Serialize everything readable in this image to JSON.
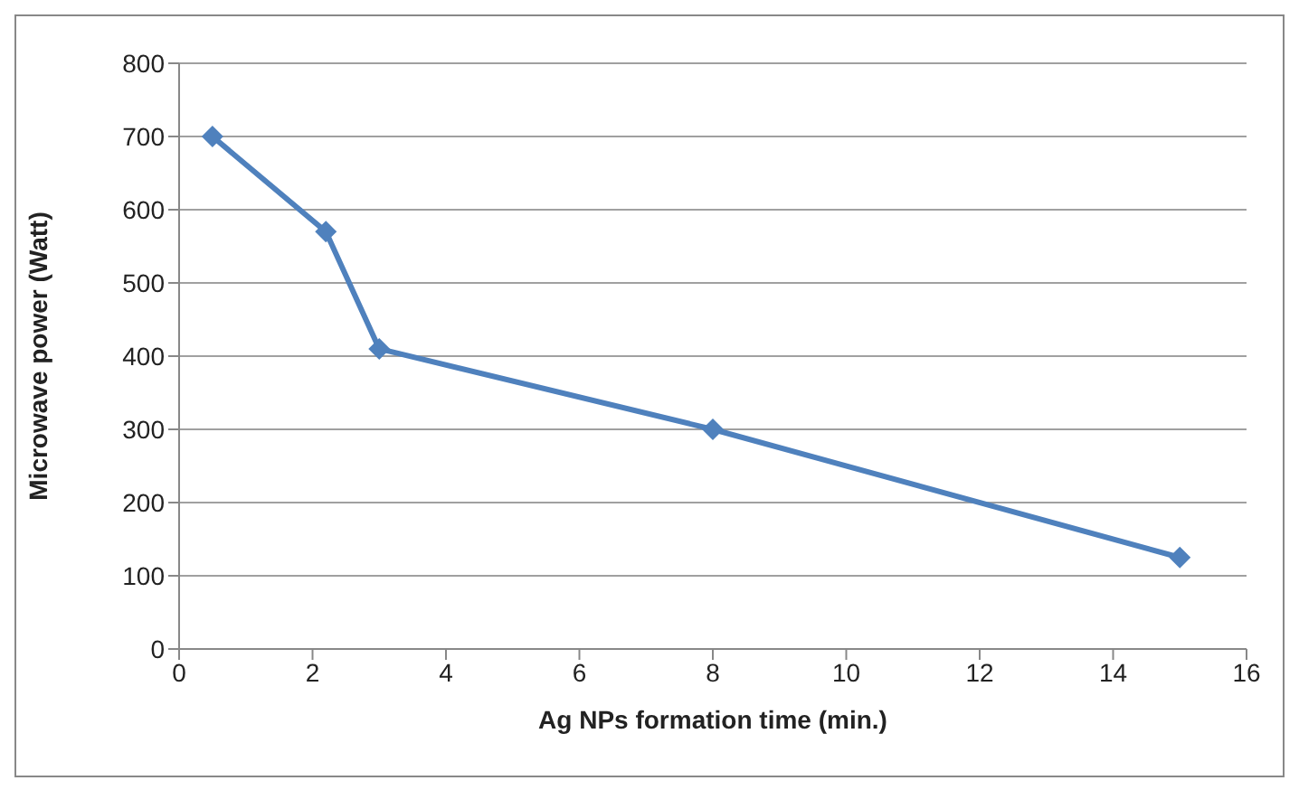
{
  "chart_data": {
    "type": "line",
    "xlabel": "Ag NPs formation time (min.)",
    "ylabel": "Microwave power (Watt)",
    "x": [
      0.5,
      2.2,
      3,
      8,
      15
    ],
    "series": [
      {
        "color": "#4f81bd",
        "values": [
          700,
          570,
          410,
          300,
          125
        ]
      }
    ],
    "xlim": [
      0,
      16
    ],
    "xticks": [
      0,
      2,
      4,
      6,
      8,
      10,
      12,
      14,
      16
    ],
    "ylim": [
      0,
      800
    ],
    "yticks": [
      0,
      100,
      200,
      300,
      400,
      500,
      600,
      700,
      800
    ],
    "grid": "y",
    "marker": "diamond",
    "line_style": "solid"
  }
}
